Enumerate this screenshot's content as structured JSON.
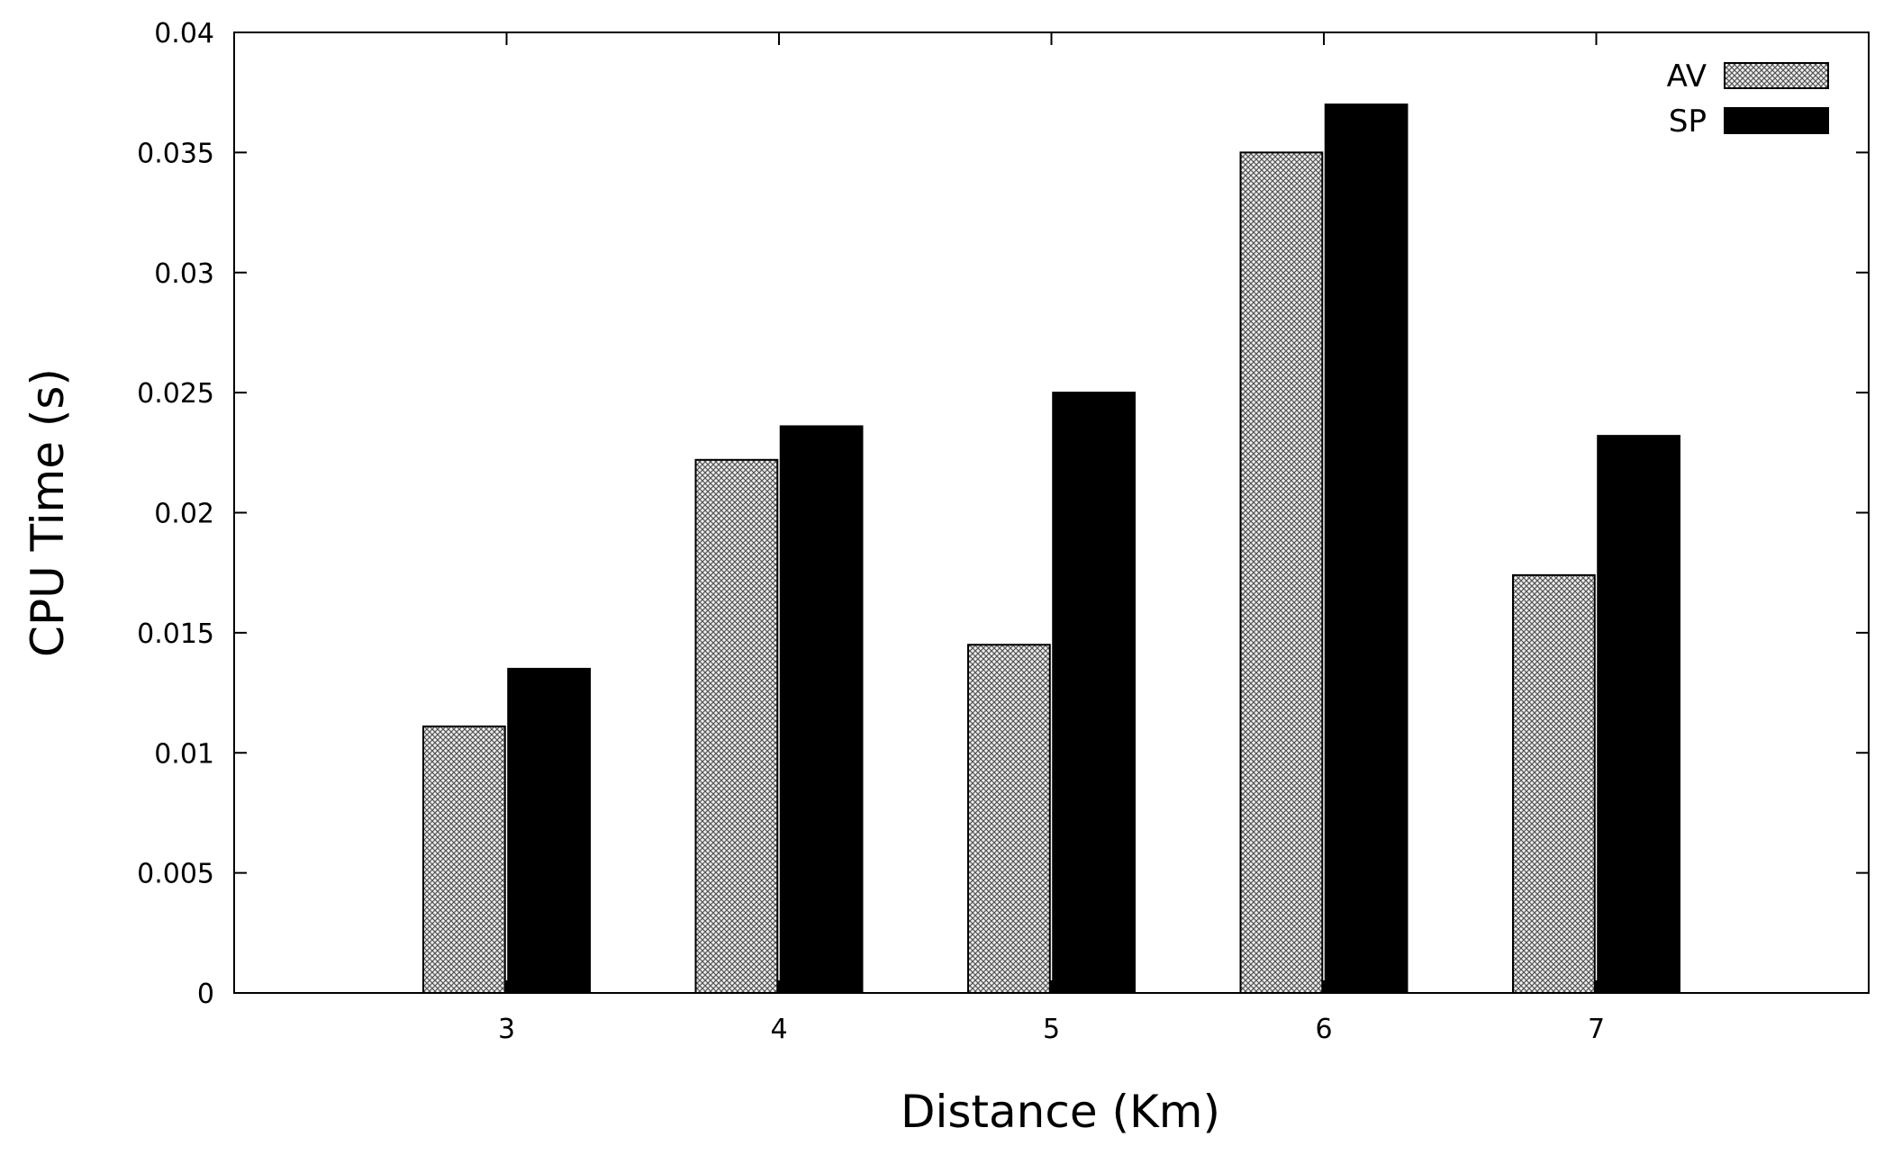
{
  "chart_data": {
    "type": "bar",
    "title": "",
    "xlabel": "Distance (Km)",
    "ylabel": "CPU Time (s)",
    "categories": [
      "3",
      "4",
      "5",
      "6",
      "7"
    ],
    "xlim": [
      2,
      8
    ],
    "ylim": [
      0,
      0.04
    ],
    "yticks": [
      "0",
      "0.005",
      "0.01",
      "0.015",
      "0.02",
      "0.025",
      "0.03",
      "0.035",
      "0.04"
    ],
    "grid": false,
    "legend_position": "top-right",
    "series": [
      {
        "name": "AV",
        "values": [
          0.0111,
          0.0222,
          0.0145,
          0.035,
          0.0174
        ],
        "fill": "crosshatch",
        "color": "#c8c8c8"
      },
      {
        "name": "SP",
        "values": [
          0.0135,
          0.0236,
          0.025,
          0.037,
          0.0232
        ],
        "fill": "solid",
        "color": "#000000"
      }
    ]
  }
}
